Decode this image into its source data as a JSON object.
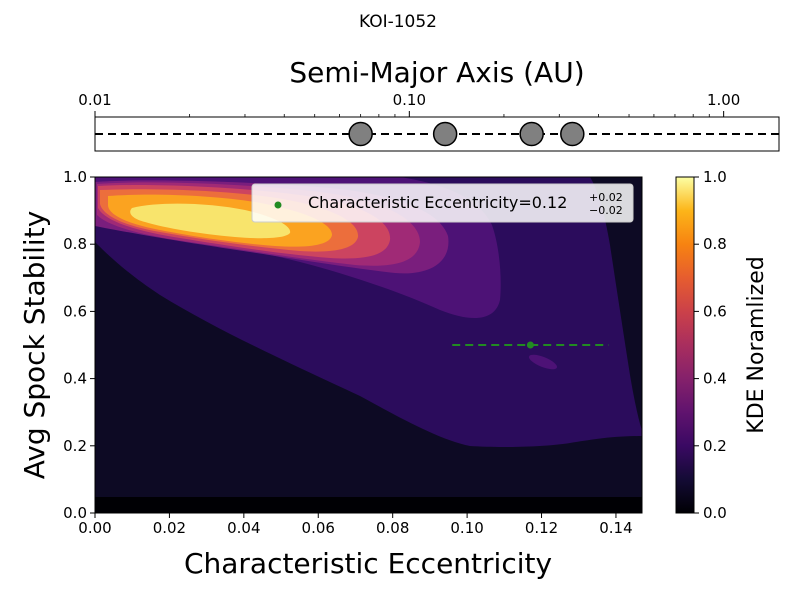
{
  "chart_data": [
    {
      "type": "scatter",
      "title": "KOI-1052",
      "xlabel": "Semi-Major Axis (AU)",
      "xscale": "log",
      "xlim": [
        0.01,
        1.5
      ],
      "xticks": [
        {
          "value": 0.01,
          "label": "0.01"
        },
        {
          "value": 0.1,
          "label": "0.10"
        },
        {
          "value": 1.0,
          "label": "1.00"
        }
      ],
      "planets": [
        {
          "a": 0.07
        },
        {
          "a": 0.13
        },
        {
          "a": 0.245
        },
        {
          "a": 0.33
        }
      ],
      "line_style": "dashed",
      "marker_color": "#808080"
    },
    {
      "type": "heatmap",
      "xlabel": "Characteristic Eccentricity",
      "ylabel": "Avg Spock Stability",
      "xlim": [
        0.0,
        0.147
      ],
      "ylim": [
        0.0,
        1.0
      ],
      "xticks": [
        "0.00",
        "0.02",
        "0.04",
        "0.06",
        "0.08",
        "0.10",
        "0.12",
        "0.14"
      ],
      "yticks": [
        "0.0",
        "0.2",
        "0.4",
        "0.6",
        "0.8",
        "1.0"
      ],
      "legend": {
        "position": "top-right",
        "label": "Characteristic Eccentricity=0.12",
        "sup": "+0.02",
        "sub": "−0.02"
      },
      "estimate": {
        "x": 0.117,
        "y": 0.5,
        "xerr_low": 0.021,
        "xerr_high": 0.021,
        "color": "#228b22"
      },
      "colorbar": {
        "label": "KDE Noramlized",
        "range": [
          0.0,
          1.0
        ],
        "ticks": [
          "0.0",
          "0.2",
          "0.4",
          "0.6",
          "0.8",
          "1.0"
        ],
        "colormap": "inferno-like",
        "levels": [
          "#0d0a24",
          "#2b0c5c",
          "#4d1276",
          "#7a1e7d",
          "#a02a76",
          "#cc4460",
          "#ec6e3c",
          "#fba320",
          "#f8e46c"
        ]
      }
    }
  ]
}
